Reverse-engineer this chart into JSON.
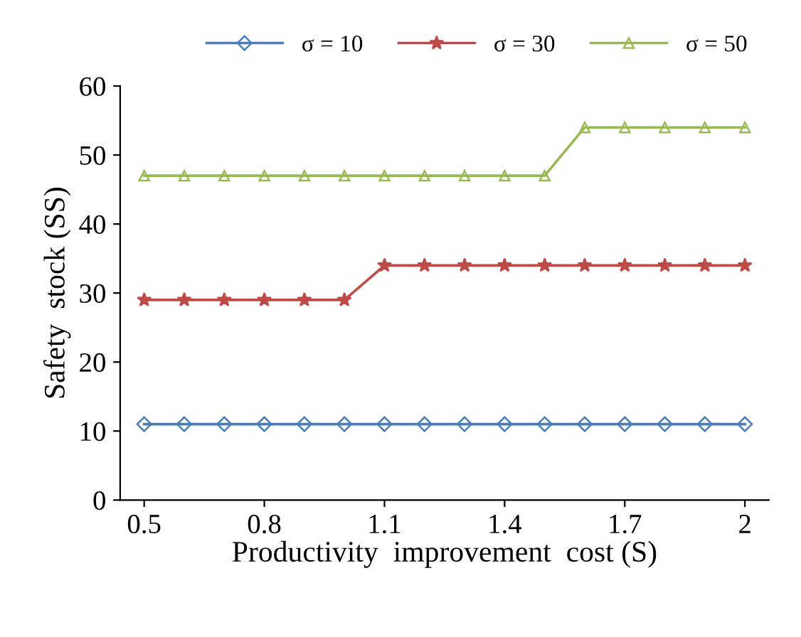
{
  "chart_data": {
    "type": "line",
    "xlabel": "Productivity  improvement  cost (S)",
    "ylabel": "Safety  stock (SS)",
    "x": [
      0.5,
      0.6,
      0.7,
      0.8,
      0.9,
      1.0,
      1.1,
      1.2,
      1.3,
      1.4,
      1.5,
      1.6,
      1.7,
      1.8,
      1.9,
      2.0
    ],
    "series": [
      {
        "name": "σ = 10",
        "color": "#4a7ebb",
        "marker": "diamond",
        "values": [
          11,
          11,
          11,
          11,
          11,
          11,
          11,
          11,
          11,
          11,
          11,
          11,
          11,
          11,
          11,
          11
        ]
      },
      {
        "name": "σ = 30",
        "color": "#be4b48",
        "marker": "star",
        "values": [
          29,
          29,
          29,
          29,
          29,
          29,
          34,
          34,
          34,
          34,
          34,
          34,
          34,
          34,
          34,
          34
        ]
      },
      {
        "name": "σ = 50",
        "color": "#98b954",
        "marker": "triangle",
        "values": [
          47,
          47,
          47,
          47,
          47,
          47,
          47,
          47,
          47,
          47,
          47,
          54,
          54,
          54,
          54,
          54
        ]
      }
    ],
    "xlim": [
      0.44,
      2.06
    ],
    "xticks": [
      0.5,
      0.8,
      1.1,
      1.4,
      1.7,
      2
    ],
    "ylim": [
      0,
      60
    ],
    "yticks": [
      0,
      10,
      20,
      30,
      40,
      50,
      60
    ],
    "grid": false,
    "legend": "top",
    "line_style": "solid"
  }
}
